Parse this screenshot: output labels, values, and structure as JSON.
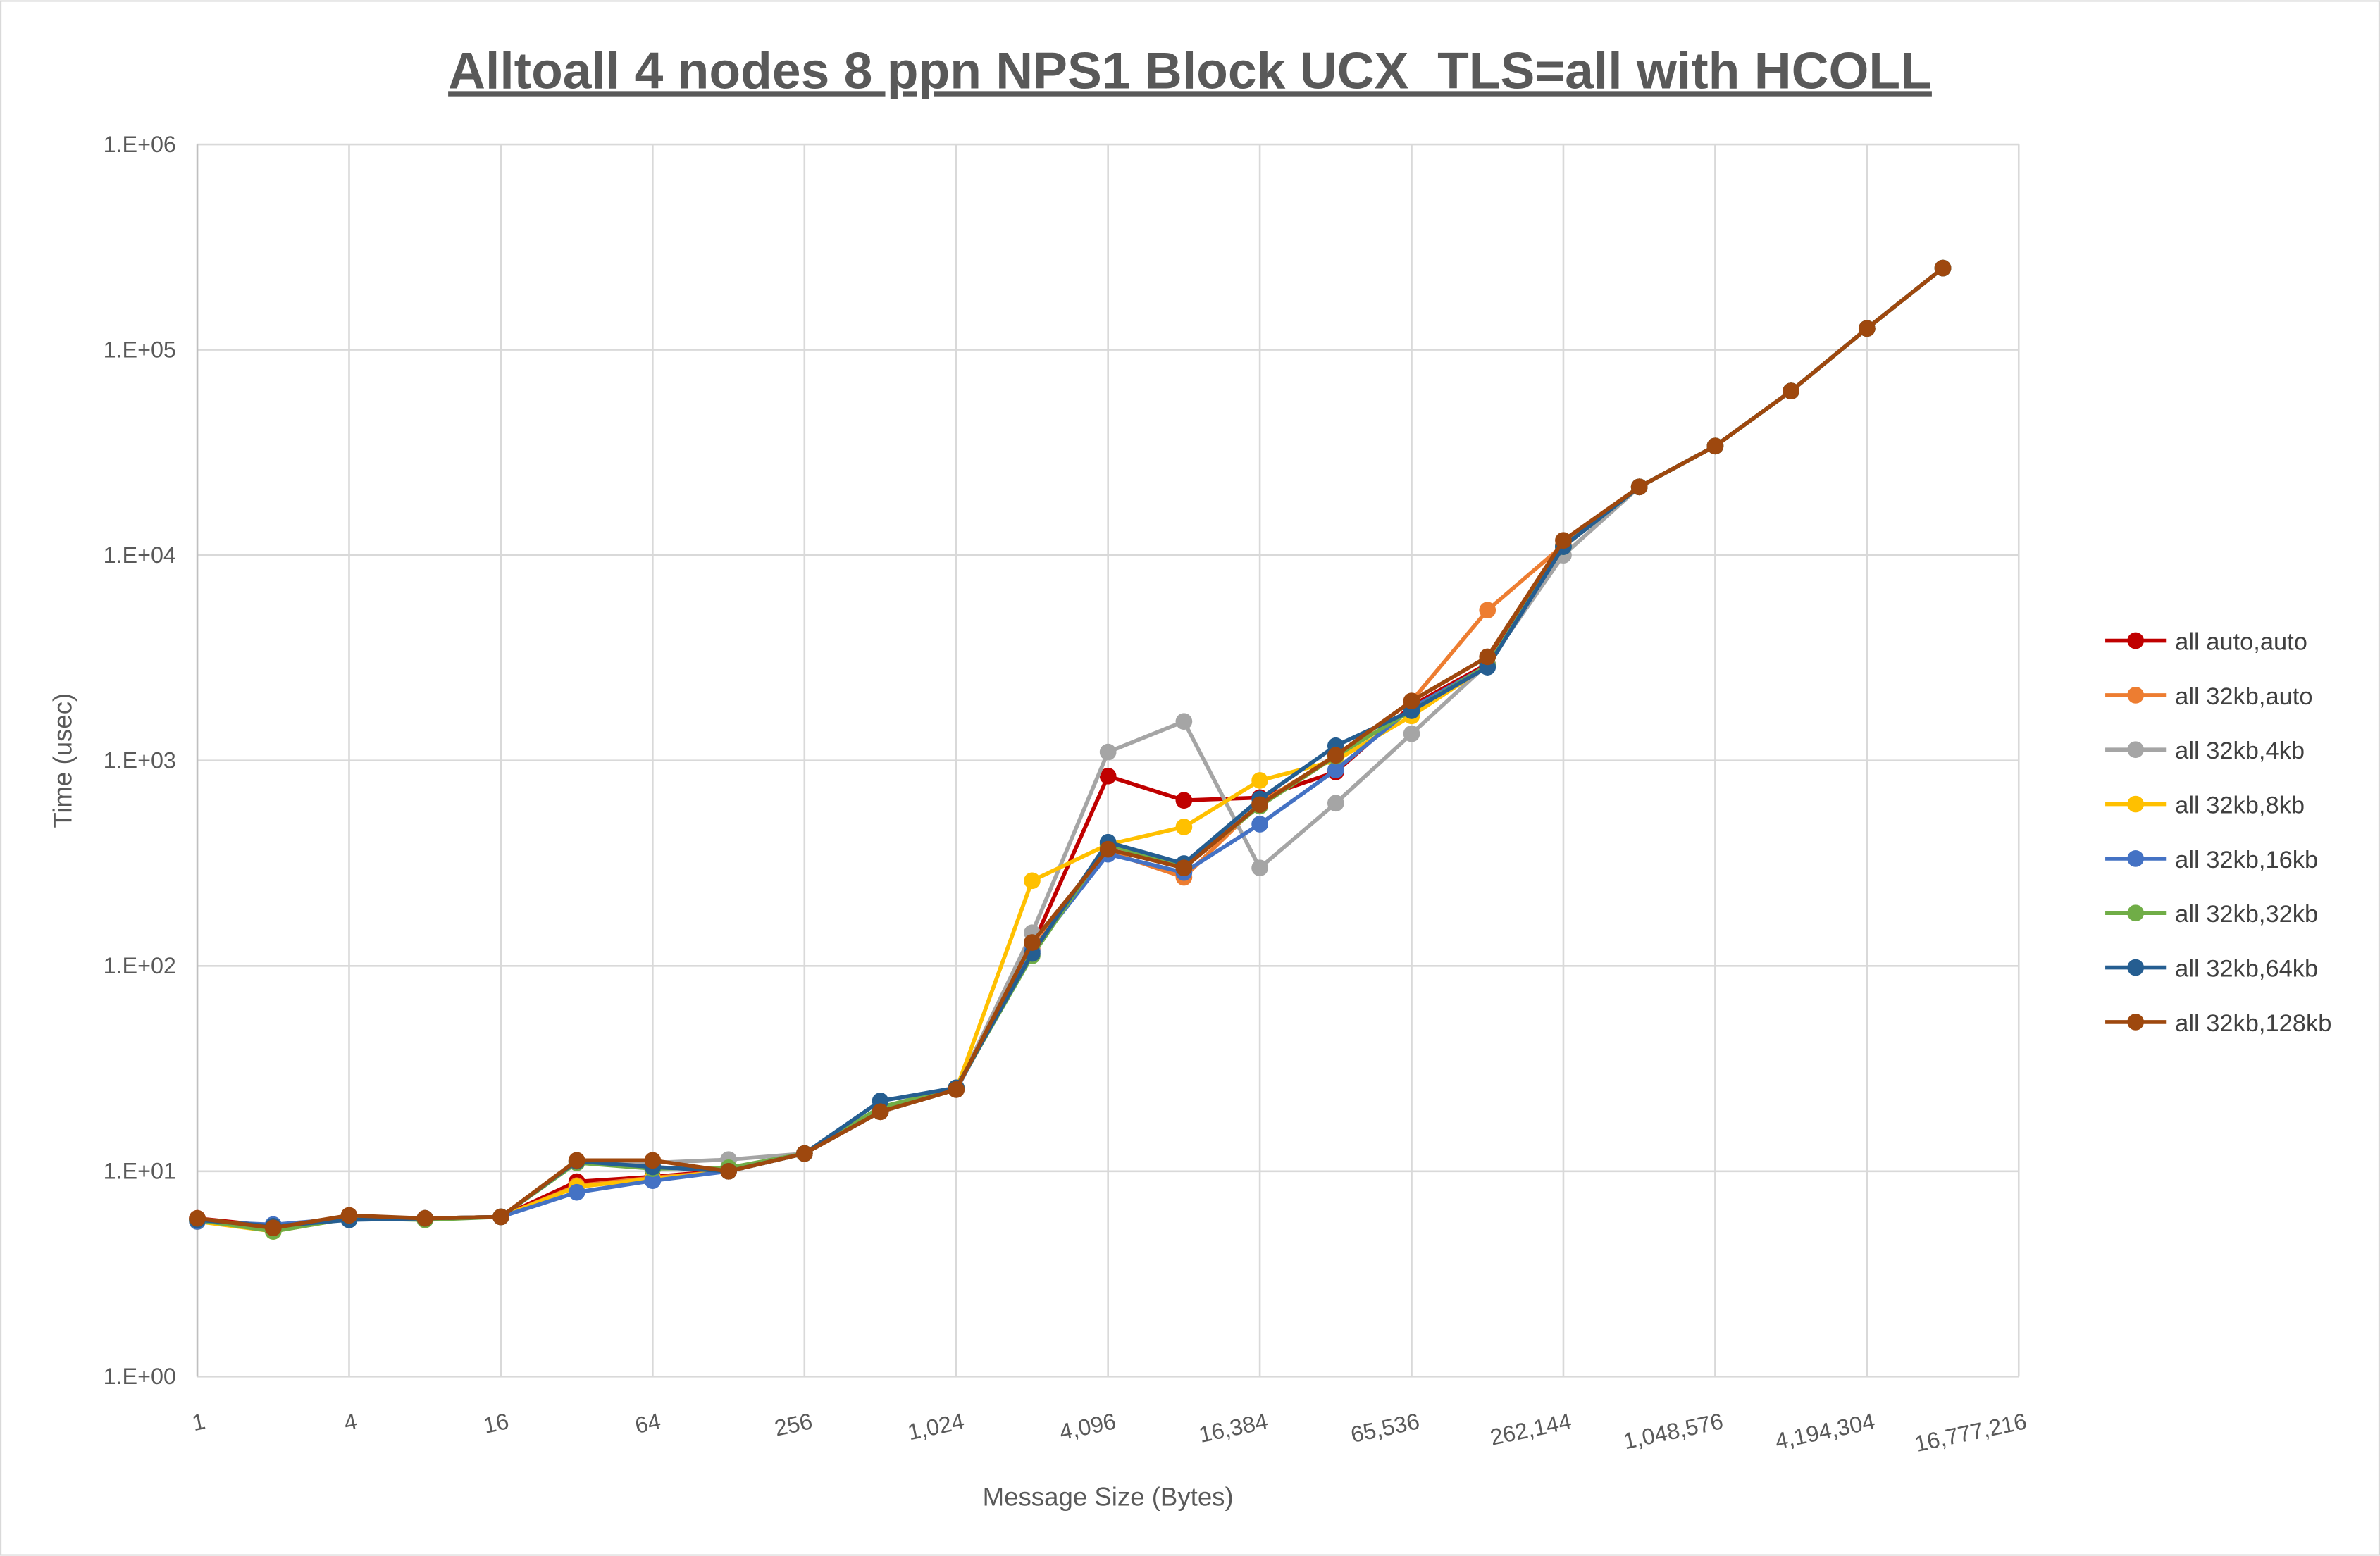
{
  "chart_data": {
    "type": "line",
    "title": "Alltoall 4 nodes 8 ppn NPS1 Block UCX_TLS=all with HCOLL",
    "xlabel": "Message Size (Bytes)",
    "ylabel": "Time (usec)",
    "yscale": "log",
    "ylim": [
      1,
      1000000
    ],
    "y_ticks": [
      "1.E+00",
      "1.E+01",
      "1.E+02",
      "1.E+03",
      "1.E+04",
      "1.E+05",
      "1.E+06"
    ],
    "x_categories": [
      1,
      2,
      4,
      8,
      16,
      32,
      64,
      128,
      256,
      512,
      1024,
      2048,
      4096,
      8192,
      16384,
      32768,
      65536,
      131072,
      262144,
      524288,
      1048576,
      2097152,
      4194304,
      8388608,
      16777216
    ],
    "x_tick_labels": [
      "1",
      "4",
      "16",
      "64",
      "256",
      "1,024",
      "4,096",
      "16,384",
      "65,536",
      "262,144",
      "1,048,576",
      "4,194,304",
      "16,777,216"
    ],
    "grid": true,
    "legend_position": "right",
    "series": [
      {
        "name": "all auto,auto",
        "color": "#C00000",
        "values": [
          5.9,
          5.4,
          6.0,
          5.9,
          6.0,
          8.9,
          9.4,
          10.1,
          12.2,
          19.5,
          25,
          125,
          840,
          640,
          660,
          880,
          1850,
          2950,
          11000,
          21500,
          34000,
          63000,
          127000,
          250000
        ]
      },
      {
        "name": "all 32kb,auto",
        "color": "#ED7D31",
        "values": [
          5.8,
          5.3,
          6.0,
          5.9,
          6.0,
          8.5,
          9.3,
          10.0,
          12.2,
          19.5,
          25,
          120,
          360,
          270,
          620,
          1050,
          1950,
          5400,
          11200,
          21500,
          34000,
          63000,
          127000,
          250000
        ]
      },
      {
        "name": "all 32kb,4kb",
        "color": "#A5A5A5",
        "values": [
          5.8,
          5.3,
          6.0,
          5.9,
          6.0,
          11.2,
          11.0,
          11.4,
          12.2,
          19.5,
          25,
          145,
          1100,
          1550,
          300,
          620,
          1350,
          2950,
          10000,
          21500,
          34000,
          63000,
          127000,
          250000
        ]
      },
      {
        "name": "all 32kb,8kb",
        "color": "#FFC000",
        "values": [
          5.7,
          5.1,
          5.9,
          5.9,
          6.0,
          8.4,
          9.2,
          10.0,
          12.2,
          19.5,
          25,
          260,
          390,
          475,
          800,
          1000,
          1650,
          2900,
          11000,
          21500,
          34000,
          63000,
          127000,
          250000
        ]
      },
      {
        "name": "all 32kb,16kb",
        "color": "#4472C4",
        "values": [
          5.7,
          5.5,
          5.9,
          5.9,
          6.0,
          7.9,
          9.0,
          10.0,
          12.2,
          19.5,
          25,
          118,
          350,
          285,
          490,
          900,
          1800,
          2900,
          11000,
          21500,
          34000,
          63000,
          127000,
          250000
        ]
      },
      {
        "name": "all 32kb,32kb",
        "color": "#70AD47",
        "values": [
          5.8,
          5.1,
          5.9,
          5.8,
          6.0,
          11.0,
          10.3,
          10.4,
          12.2,
          20.5,
          25.5,
          112,
          390,
          305,
          600,
          1050,
          1750,
          2900,
          11000,
          21500,
          34000,
          63000,
          127000,
          250000
        ]
      },
      {
        "name": "all 32kb,64kb",
        "color": "#255E91",
        "values": [
          5.8,
          5.4,
          5.8,
          5.9,
          6.0,
          11.2,
          10.5,
          10.0,
          12.2,
          22.0,
          25.5,
          115,
          400,
          315,
          650,
          1180,
          1750,
          2850,
          11000,
          21500,
          34000,
          63000,
          127000,
          250000
        ]
      },
      {
        "name": "all 32kb,128kb",
        "color": "#9E480E",
        "values": [
          5.9,
          5.3,
          6.1,
          5.9,
          6.0,
          11.3,
          11.3,
          10.0,
          12.2,
          19.5,
          25,
          130,
          370,
          300,
          610,
          1060,
          1950,
          3200,
          11800,
          21500,
          34000,
          63000,
          127000,
          250000
        ]
      }
    ]
  }
}
